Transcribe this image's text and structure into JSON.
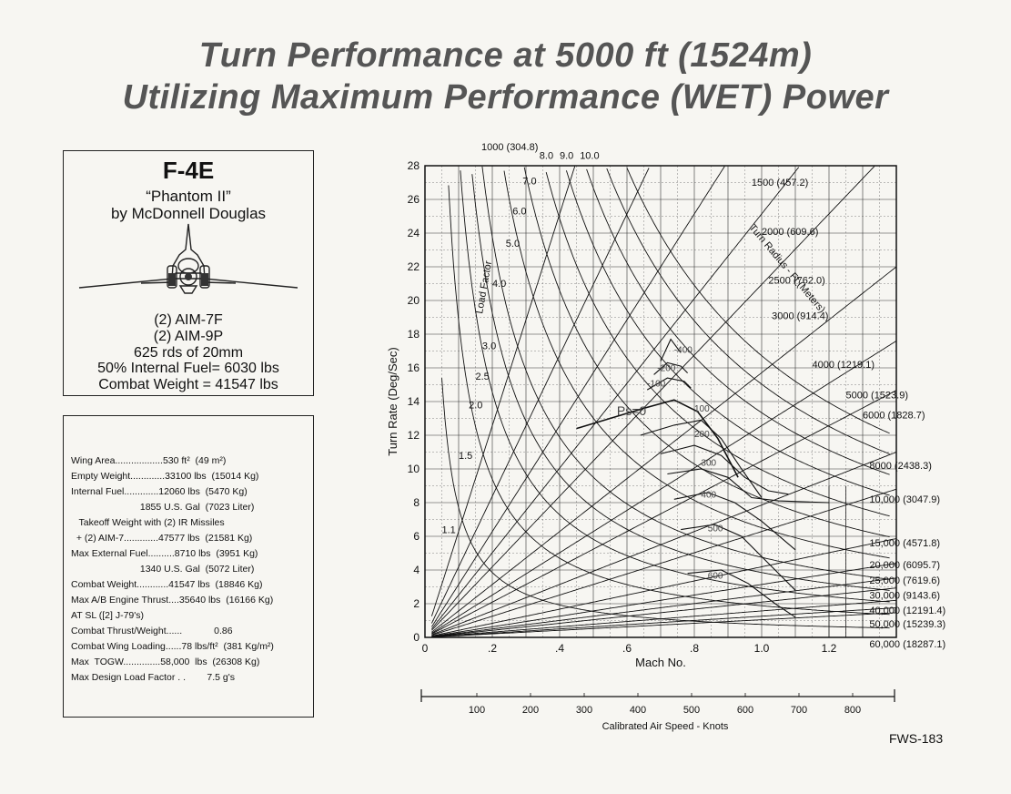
{
  "title_line1": "Turn Performance at 5000 ft (1524m)",
  "title_line2": "Utilizing Maximum Performance (WET) Power",
  "aircraft": {
    "model": "F-4E",
    "nickname": "“Phantom II”",
    "manufacturer": "by McDonnell Douglas",
    "stores": [
      "(2) AIM-7F",
      "(2) AIM-9P",
      "625 rds of 20mm",
      "50% Internal Fuel= 6030 lbs",
      "Combat Weight  =  41547 lbs"
    ]
  },
  "specs": [
    "Wing Area..................530 ft²  (49 m²)",
    "Empty Weight.............33100 lbs  (15014 Kg)",
    "Internal Fuel.............12060 lbs  (5470 Kg)",
    "                          1855 U.S. Gal  (7023 Liter)",
    "   Takeoff Weight with (2) IR Missiles",
    "  + (2) AIM-7.............47577 lbs  (21581 Kg)",
    "Max External Fuel..........8710 lbs  (3951 Kg)",
    "                          1340 U.S. Gal  (5072 Liter)",
    "Combat Weight............41547 lbs  (18846 Kg)",
    "Max A/B Engine Thrust....35640 lbs  (16166 Kg)",
    "AT SL ([2] J-79's)",
    "Combat Thrust/Weight......            0.86",
    "Combat Wing Loading......78 lbs/ft²  (381 Kg/m²)",
    "Max  TOGW..............58,000  lbs  (26308 Kg)",
    "Max Design Load Factor . .        7.5 g's"
  ],
  "chart_data": {
    "type": "line",
    "xlabel": "Mach No.",
    "ylabel": "Turn Rate (Deg/Sec)",
    "xlim": [
      0,
      1.4
    ],
    "ylim": [
      0,
      28
    ],
    "xticks": [
      "0",
      ".2",
      ".4",
      ".6",
      ".8",
      "1.0",
      "1.2"
    ],
    "yticks": [
      "0",
      "2",
      "4",
      "6",
      "8",
      "10",
      "12",
      "14",
      "16",
      "18",
      "20",
      "22",
      "24",
      "26",
      "28"
    ],
    "secondary_axis": {
      "label": "Calibrated Air Speed - Knots",
      "ticks": [
        "100",
        "200",
        "300",
        "400",
        "500",
        "600",
        "700",
        "800"
      ]
    },
    "load_factor": {
      "label": "Load Factor",
      "values": [
        "1.1",
        "1.5",
        "2.0",
        "2.5",
        "3.0",
        "4.0",
        "5.0",
        "6.0",
        "7.0",
        "8.0",
        "9.0",
        "10.0"
      ]
    },
    "turn_radius": {
      "label": "Turn Radius - Ft (Meters)",
      "values": [
        "1000 (304.8)",
        "1500 (457.2)",
        "2000 (609.6)",
        "2500 (762.0)",
        "3000 (914.4)",
        "4000 (1219.1)",
        "5000 (1523.9)",
        "6000 (1828.7)",
        "8000 (2438.3)",
        "10,000 (3047.9)",
        "15,000 (4571.8)",
        "20,000 (6095.7)",
        "25,000 (7619.6)",
        "30,000 (9143.6)",
        "40,000 (12191.4)",
        "50,000 (15239.3)",
        "60,000 (18287.1)"
      ]
    },
    "specific_excess_power": {
      "labels": [
        "-400",
        "-200",
        "-100",
        "Ps=0",
        "100",
        "200",
        "300",
        "400",
        "500",
        "600"
      ],
      "series": [
        {
          "name": "-400",
          "x": [
            0.7,
            0.73,
            0.76
          ],
          "y": [
            16.4,
            17.7,
            16.9
          ]
        },
        {
          "name": "-200",
          "x": [
            0.68,
            0.72,
            0.76,
            0.78
          ],
          "y": [
            15.6,
            16.3,
            16.1,
            15.7
          ]
        },
        {
          "name": "-100",
          "x": [
            0.66,
            0.72,
            0.77,
            0.79
          ],
          "y": [
            14.7,
            15.4,
            15.2,
            14.8
          ]
        },
        {
          "name": "0",
          "x": [
            0.45,
            0.55,
            0.65,
            0.74,
            0.81,
            0.87,
            0.93
          ],
          "y": [
            12.4,
            13.0,
            13.6,
            14.1,
            13.4,
            11.8,
            9.5
          ]
        },
        {
          "name": "100",
          "x": [
            0.64,
            0.74,
            0.82,
            0.88,
            0.94,
            1.0
          ],
          "y": [
            12.0,
            12.6,
            12.9,
            11.8,
            10.0,
            8.3
          ]
        },
        {
          "name": "200",
          "x": [
            0.7,
            0.8,
            0.88,
            0.95,
            1.02,
            1.08
          ],
          "y": [
            10.9,
            11.4,
            10.8,
            9.5,
            8.7,
            8.5
          ]
        },
        {
          "name": "300",
          "x": [
            0.72,
            0.82,
            0.9,
            0.97,
            1.05,
            1.2
          ],
          "y": [
            9.7,
            10.0,
            9.5,
            8.3,
            8.1,
            8.0
          ]
        },
        {
          "name": "400",
          "x": [
            0.74,
            0.84,
            0.92,
            1.0,
            1.1
          ],
          "y": [
            8.2,
            8.6,
            8.0,
            6.9,
            5.2
          ]
        },
        {
          "name": "500",
          "x": [
            0.76,
            0.86,
            0.94,
            1.02,
            1.1
          ],
          "y": [
            6.4,
            6.7,
            6.0,
            4.4,
            2.8
          ]
        },
        {
          "name": "600",
          "x": [
            0.78,
            0.88,
            0.96,
            1.04,
            1.1
          ],
          "y": [
            3.8,
            4.0,
            3.2,
            2.0,
            1.2
          ]
        }
      ]
    }
  },
  "footer_code": "FWS-183"
}
